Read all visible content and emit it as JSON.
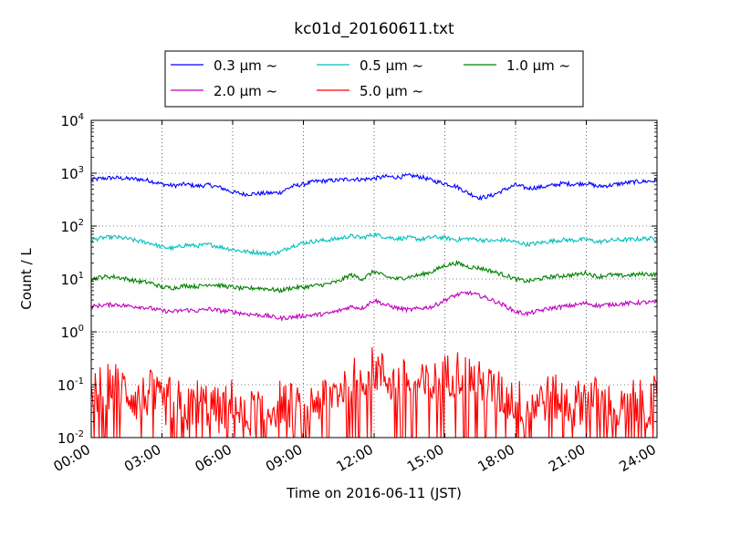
{
  "chart_data": {
    "type": "line",
    "title": "kc01d_20160611.txt",
    "xlabel": "Time on 2016-06-11 (JST)",
    "ylabel": "Count / L",
    "x_range": [
      "00:00",
      "24:00"
    ],
    "x_unit": "hours",
    "xlim": [
      0,
      24
    ],
    "xticks": [
      {
        "x": 0,
        "label": "00:00"
      },
      {
        "x": 3,
        "label": "03:00"
      },
      {
        "x": 6,
        "label": "06:00"
      },
      {
        "x": 9,
        "label": "09:00"
      },
      {
        "x": 12,
        "label": "12:00"
      },
      {
        "x": 15,
        "label": "15:00"
      },
      {
        "x": 18,
        "label": "18:00"
      },
      {
        "x": 21,
        "label": "21:00"
      },
      {
        "x": 24,
        "label": "24:00"
      }
    ],
    "yscale": "log",
    "ylim": [
      0.01,
      10000
    ],
    "yticks": [
      {
        "value": 0.01,
        "base": "10",
        "exp": "-2"
      },
      {
        "value": 0.1,
        "base": "10",
        "exp": "-1"
      },
      {
        "value": 1,
        "base": "10",
        "exp": "0"
      },
      {
        "value": 10,
        "base": "10",
        "exp": "1"
      },
      {
        "value": 100,
        "base": "10",
        "exp": "2"
      },
      {
        "value": 1000,
        "base": "10",
        "exp": "3"
      },
      {
        "value": 10000,
        "base": "10",
        "exp": "4"
      }
    ],
    "grid": true,
    "legend_position": "top-center",
    "series": [
      {
        "name": "0.3 μm ~",
        "color": "#0000ff",
        "x": [
          0,
          0.5,
          1,
          1.5,
          2,
          2.5,
          3,
          3.5,
          4,
          4.5,
          5,
          5.5,
          6,
          6.5,
          7,
          7.5,
          8,
          8.5,
          9,
          9.5,
          10,
          10.5,
          11,
          11.5,
          12,
          12.5,
          13,
          13.5,
          14,
          14.5,
          15,
          15.5,
          16,
          16.5,
          17,
          17.5,
          18,
          18.5,
          19,
          19.5,
          20,
          20.5,
          21,
          21.5,
          22,
          22.5,
          23,
          23.5,
          24
        ],
        "values": [
          750,
          800,
          820,
          790,
          770,
          720,
          620,
          580,
          620,
          570,
          600,
          530,
          440,
          400,
          410,
          420,
          430,
          560,
          620,
          700,
          720,
          740,
          780,
          760,
          800,
          860,
          840,
          900,
          850,
          720,
          640,
          560,
          420,
          340,
          380,
          480,
          600,
          520,
          540,
          580,
          640,
          620,
          650,
          560,
          590,
          640,
          680,
          700,
          720
        ]
      },
      {
        "name": "0.5 μm ~",
        "color": "#00bfbf",
        "x": [
          0,
          0.5,
          1,
          1.5,
          2,
          2.5,
          3,
          3.5,
          4,
          4.5,
          5,
          5.5,
          6,
          6.5,
          7,
          7.5,
          8,
          8.5,
          9,
          9.5,
          10,
          10.5,
          11,
          11.5,
          12,
          12.5,
          13,
          13.5,
          14,
          14.5,
          15,
          15.5,
          16,
          16.5,
          17,
          17.5,
          18,
          18.5,
          19,
          19.5,
          20,
          20.5,
          21,
          21.5,
          22,
          22.5,
          23,
          23.5,
          24
        ],
        "values": [
          55,
          60,
          62,
          58,
          52,
          48,
          40,
          38,
          44,
          42,
          45,
          40,
          36,
          33,
          32,
          30,
          32,
          42,
          48,
          52,
          54,
          58,
          65,
          60,
          70,
          62,
          58,
          60,
          56,
          62,
          60,
          55,
          58,
          55,
          52,
          55,
          50,
          45,
          48,
          52,
          55,
          54,
          56,
          50,
          54,
          55,
          56,
          58,
          58
        ]
      },
      {
        "name": "1.0 μm ~",
        "color": "#008000",
        "x": [
          0,
          0.5,
          1,
          1.5,
          2,
          2.5,
          3,
          3.5,
          4,
          4.5,
          5,
          5.5,
          6,
          6.5,
          7,
          7.5,
          8,
          8.5,
          9,
          9.5,
          10,
          10.5,
          11,
          11.5,
          12,
          12.5,
          13,
          13.5,
          14,
          14.5,
          15,
          15.5,
          16,
          16.5,
          17,
          17.5,
          18,
          18.5,
          19,
          19.5,
          20,
          20.5,
          21,
          21.5,
          22,
          22.5,
          23,
          23.5,
          24
        ],
        "values": [
          10,
          11,
          11,
          10,
          9,
          8.5,
          7,
          6.8,
          7.5,
          7.2,
          8,
          7.5,
          7,
          6.5,
          6.8,
          6.5,
          6,
          6.8,
          7,
          7.5,
          8,
          9,
          12,
          10,
          14,
          11,
          10,
          11,
          12,
          14,
          18,
          20,
          17,
          16,
          14,
          12,
          10,
          9,
          10,
          11,
          11.5,
          12,
          13,
          11,
          12,
          11.5,
          12,
          12.5,
          12
        ]
      },
      {
        "name": "2.0 μm ~",
        "color": "#bf00bf",
        "x": [
          0,
          0.5,
          1,
          1.5,
          2,
          2.5,
          3,
          3.5,
          4,
          4.5,
          5,
          5.5,
          6,
          6.5,
          7,
          7.5,
          8,
          8.5,
          9,
          9.5,
          10,
          10.5,
          11,
          11.5,
          12,
          12.5,
          13,
          13.5,
          14,
          14.5,
          15,
          15.5,
          16,
          16.5,
          17,
          17.5,
          18,
          18.5,
          19,
          19.5,
          20,
          20.5,
          21,
          21.5,
          22,
          22.5,
          23,
          23.5,
          24
        ],
        "values": [
          3,
          3.2,
          3.3,
          3.1,
          3,
          2.8,
          2.5,
          2.4,
          2.6,
          2.5,
          2.7,
          2.5,
          2.4,
          2.2,
          2.1,
          2,
          1.8,
          1.9,
          2,
          2.1,
          2.2,
          2.5,
          3,
          2.8,
          4,
          3.2,
          2.8,
          2.6,
          2.8,
          3,
          4,
          5,
          5.5,
          4.8,
          4,
          3.2,
          2.4,
          2.2,
          2.5,
          2.8,
          3,
          3.2,
          3.5,
          3.1,
          3.3,
          3.4,
          3.5,
          3.6,
          3.6
        ]
      },
      {
        "name": "5.0 μm ~",
        "color": "#ff0000",
        "x": [
          0,
          0.5,
          1,
          1.5,
          2,
          2.5,
          3,
          3.5,
          4,
          4.5,
          5,
          5.5,
          6,
          6.5,
          7,
          7.5,
          8,
          8.5,
          9,
          9.5,
          10,
          10.5,
          11,
          11.5,
          12,
          12.5,
          13,
          13.5,
          14,
          14.5,
          15,
          15.5,
          16,
          16.5,
          17,
          17.5,
          18,
          18.5,
          19,
          19.5,
          20,
          20.5,
          21,
          21.5,
          22,
          22.5,
          23,
          23.5,
          24
        ],
        "values": [
          0.06,
          0.09,
          0.1,
          0.08,
          0.05,
          0.07,
          0.04,
          0.06,
          0.03,
          0.05,
          0.04,
          0.03,
          0.05,
          0.02,
          0.04,
          0.03,
          0.05,
          0.04,
          0.03,
          0.05,
          0.06,
          0.08,
          0.12,
          0.15,
          0.2,
          0.14,
          0.1,
          0.12,
          0.09,
          0.1,
          0.14,
          0.18,
          0.15,
          0.1,
          0.08,
          0.06,
          0.05,
          0.04,
          0.05,
          0.06,
          0.05,
          0.04,
          0.06,
          0.05,
          0.04,
          0.03,
          0.05,
          0.04,
          0.06
        ]
      }
    ]
  }
}
